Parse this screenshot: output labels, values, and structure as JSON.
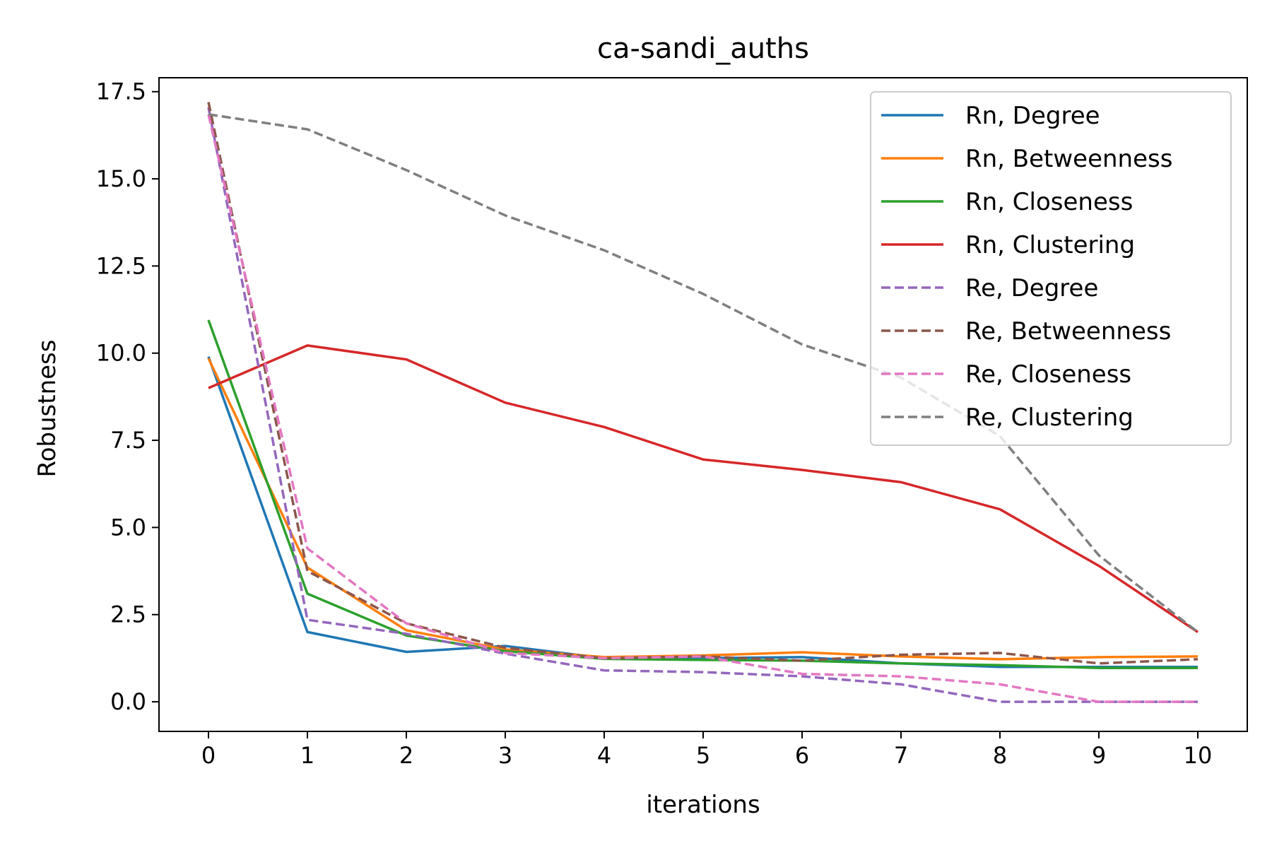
{
  "chart_data": {
    "type": "line",
    "title": "ca-sandi_auths",
    "xlabel": "iterations",
    "ylabel": "Robustness",
    "xlim": [
      -0.5,
      10.5
    ],
    "ylim": [
      -0.85,
      17.9
    ],
    "x": [
      0,
      1,
      2,
      3,
      4,
      5,
      6,
      7,
      8,
      9,
      10
    ],
    "x_ticks": [
      "0",
      "1",
      "2",
      "3",
      "4",
      "5",
      "6",
      "7",
      "8",
      "9",
      "10"
    ],
    "y_ticks": [
      {
        "value": 0.0,
        "label": "0.0"
      },
      {
        "value": 2.5,
        "label": "2.5"
      },
      {
        "value": 5.0,
        "label": "5.0"
      },
      {
        "value": 7.5,
        "label": "7.5"
      },
      {
        "value": 10.0,
        "label": "10.0"
      },
      {
        "value": 12.5,
        "label": "12.5"
      },
      {
        "value": 15.0,
        "label": "15.0"
      },
      {
        "value": 17.5,
        "label": "17.5"
      }
    ],
    "grid": false,
    "legend_position": "top-right",
    "series": [
      {
        "name": "Rn, Degree",
        "color": "#1f77b4",
        "style": "solid",
        "values": [
          9.9,
          2.0,
          1.43,
          1.6,
          1.25,
          1.25,
          1.28,
          1.1,
          1.0,
          1.0,
          1.0
        ]
      },
      {
        "name": "Rn, Betweenness",
        "color": "#ff7f0e",
        "style": "solid",
        "values": [
          9.85,
          3.85,
          2.05,
          1.5,
          1.28,
          1.33,
          1.42,
          1.3,
          1.22,
          1.28,
          1.3
        ]
      },
      {
        "name": "Rn, Closeness",
        "color": "#2ca02c",
        "style": "solid",
        "values": [
          10.95,
          3.1,
          1.9,
          1.45,
          1.23,
          1.2,
          1.18,
          1.1,
          1.05,
          0.97,
          0.97
        ]
      },
      {
        "name": "Rn, Clustering",
        "color": "#d62728",
        "style": "solid",
        "values": [
          9.0,
          10.22,
          9.82,
          8.58,
          7.88,
          6.95,
          6.65,
          6.3,
          5.52,
          3.9,
          2.0
        ]
      },
      {
        "name": "Re, Degree",
        "color": "#9467bd",
        "style": "dashed",
        "values": [
          17.05,
          2.35,
          1.95,
          1.38,
          0.9,
          0.85,
          0.73,
          0.5,
          0.0,
          0.0,
          0.0
        ]
      },
      {
        "name": "Re, Betweenness",
        "color": "#8c564b",
        "style": "dashed",
        "values": [
          17.2,
          3.75,
          2.25,
          1.55,
          1.25,
          1.3,
          1.18,
          1.35,
          1.4,
          1.1,
          1.22
        ]
      },
      {
        "name": "Re, Closeness",
        "color": "#e377c2",
        "style": "dashed",
        "values": [
          16.85,
          4.4,
          2.25,
          1.4,
          1.25,
          1.3,
          0.8,
          0.73,
          0.5,
          0.0,
          0.0
        ]
      },
      {
        "name": "Re, Clustering",
        "color": "#7f7f7f",
        "style": "dashed",
        "values": [
          16.85,
          16.42,
          15.25,
          13.95,
          12.95,
          11.7,
          10.25,
          9.3,
          7.62,
          4.2,
          2.0
        ]
      }
    ]
  }
}
